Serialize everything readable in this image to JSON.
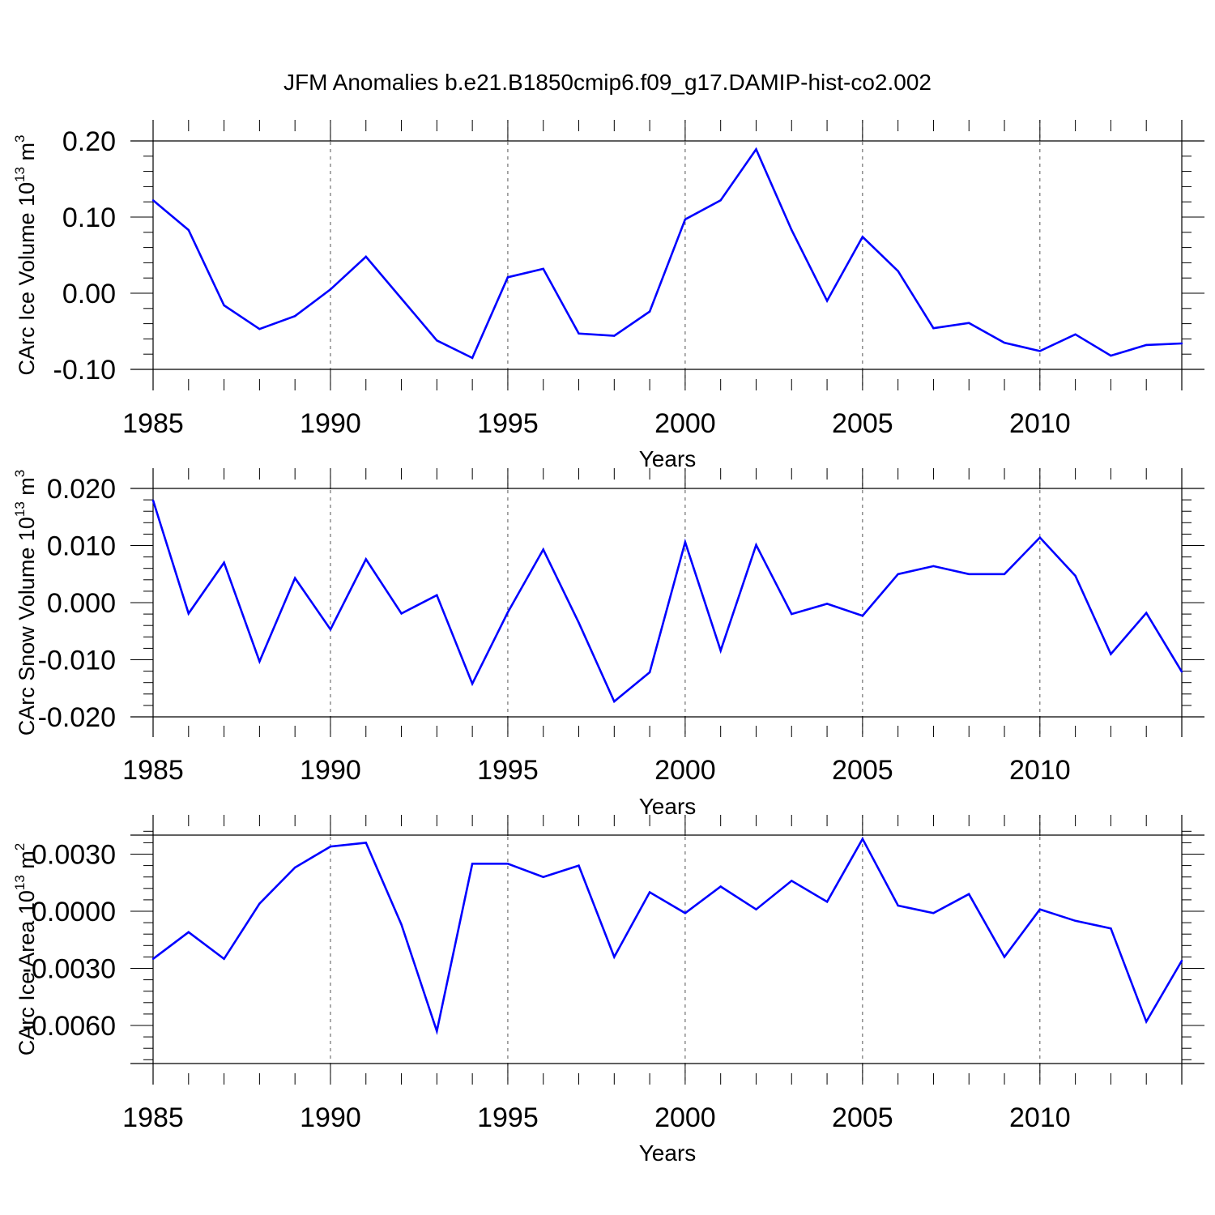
{
  "figure": {
    "title": "JFM Anomalies b.e21.B1850cmip6.f09_g17.DAMIP-hist-co2.002"
  },
  "chart_data": [
    {
      "type": "line",
      "title": "JFM Anomalies b.e21.B1850cmip6.f09_g17.DAMIP-hist-co2.002",
      "xlabel": "Years",
      "ylabel": "CArc Ice Volume 10",
      "ylabel_sup": "13",
      "ylabel_unit": " m",
      "ylabel_unit_sup": "3",
      "xlim": [
        1985,
        2014
      ],
      "ylim": [
        -0.1,
        0.2
      ],
      "xticks": [
        "1985",
        "1990",
        "1995",
        "2000",
        "2005",
        "2010"
      ],
      "xtick_values": [
        1985,
        1990,
        1995,
        2000,
        2005,
        2010
      ],
      "yticks": [
        "-0.10",
        "0.00",
        "0.10",
        "0.20"
      ],
      "ytick_values": [
        -0.1,
        0.0,
        0.1,
        0.2
      ],
      "yminor_step": 0.02,
      "grid": "dashed vertical at major x ticks",
      "line_color": "#0000ff",
      "x": [
        1985,
        1986,
        1987,
        1988,
        1989,
        1990,
        1991,
        1992,
        1993,
        1994,
        1995,
        1996,
        1997,
        1998,
        1999,
        2000,
        2001,
        2002,
        2003,
        2004,
        2005,
        2006,
        2007,
        2008,
        2009,
        2010,
        2011,
        2012,
        2013,
        2014
      ],
      "values": [
        0.122,
        0.083,
        -0.016,
        -0.047,
        -0.03,
        0.005,
        0.048,
        -0.007,
        -0.062,
        -0.085,
        0.021,
        0.032,
        -0.053,
        -0.056,
        -0.024,
        0.097,
        0.122,
        0.189,
        0.083,
        -0.01,
        0.074,
        0.029,
        -0.046,
        -0.039,
        -0.065,
        -0.076,
        -0.054,
        -0.082,
        -0.068,
        -0.066
      ]
    },
    {
      "type": "line",
      "xlabel": "Years",
      "ylabel": "CArc Snow Volume 10",
      "ylabel_sup": "13",
      "ylabel_unit": " m",
      "ylabel_unit_sup": "3",
      "xlim": [
        1985,
        2014
      ],
      "ylim": [
        -0.02,
        0.02
      ],
      "xticks": [
        "1985",
        "1990",
        "1995",
        "2000",
        "2005",
        "2010"
      ],
      "xtick_values": [
        1985,
        1990,
        1995,
        2000,
        2005,
        2010
      ],
      "yticks": [
        "-0.020",
        "-0.010",
        "0.000",
        "0.010",
        "0.020"
      ],
      "ytick_values": [
        -0.02,
        -0.01,
        0.0,
        0.01,
        0.02
      ],
      "yminor_step": 0.002,
      "grid": "dashed vertical at major x ticks",
      "line_color": "#0000ff",
      "x": [
        1985,
        1986,
        1987,
        1988,
        1989,
        1990,
        1991,
        1992,
        1993,
        1994,
        1995,
        1996,
        1997,
        1998,
        1999,
        2000,
        2001,
        2002,
        2003,
        2004,
        2005,
        2006,
        2007,
        2008,
        2009,
        2010,
        2011,
        2012,
        2013,
        2014
      ],
      "values": [
        0.0179,
        -0.0019,
        0.007,
        -0.0103,
        0.0043,
        -0.0047,
        0.0076,
        -0.0019,
        0.0013,
        -0.0142,
        -0.0017,
        0.0093,
        -0.0035,
        -0.0173,
        -0.0122,
        0.0106,
        -0.0084,
        0.0101,
        -0.002,
        -0.0002,
        -0.0023,
        0.005,
        0.0064,
        0.005,
        0.005,
        0.0114,
        0.0047,
        -0.009,
        -0.0018,
        -0.0121
      ]
    },
    {
      "type": "line",
      "xlabel": "Years",
      "ylabel": "CArc Ice Area 10",
      "ylabel_sup": "13",
      "ylabel_unit": " m",
      "ylabel_unit_sup": "2",
      "xlim": [
        1985,
        2014
      ],
      "ylim": [
        -0.008,
        0.004
      ],
      "xticks": [
        "1985",
        "1990",
        "1995",
        "2000",
        "2005",
        "2010"
      ],
      "xtick_values": [
        1985,
        1990,
        1995,
        2000,
        2005,
        2010
      ],
      "yticks": [
        "-0.0060",
        "-0.0030",
        "0.0000",
        "0.0030"
      ],
      "ytick_values": [
        -0.006,
        -0.003,
        0.0,
        0.003
      ],
      "yminor_step": 0.0006,
      "grid": "dashed vertical at major x ticks",
      "line_color": "#0000ff",
      "x": [
        1985,
        1986,
        1987,
        1988,
        1989,
        1990,
        1991,
        1992,
        1993,
        1994,
        1995,
        1996,
        1997,
        1998,
        1999,
        2000,
        2001,
        2002,
        2003,
        2004,
        2005,
        2006,
        2007,
        2008,
        2009,
        2010,
        2011,
        2012,
        2013,
        2014
      ],
      "values": [
        -0.0025,
        -0.0011,
        -0.0025,
        0.0004,
        0.0023,
        0.0034,
        0.0036,
        -0.0007,
        -0.0063,
        0.0025,
        0.0025,
        0.0018,
        0.0024,
        -0.0024,
        0.001,
        -0.0001,
        0.0013,
        0.0001,
        0.0016,
        0.0005,
        0.0038,
        0.0003,
        -0.0001,
        0.0009,
        -0.0024,
        0.0001,
        -0.0005,
        -0.0009,
        -0.0058,
        -0.0026
      ]
    }
  ]
}
